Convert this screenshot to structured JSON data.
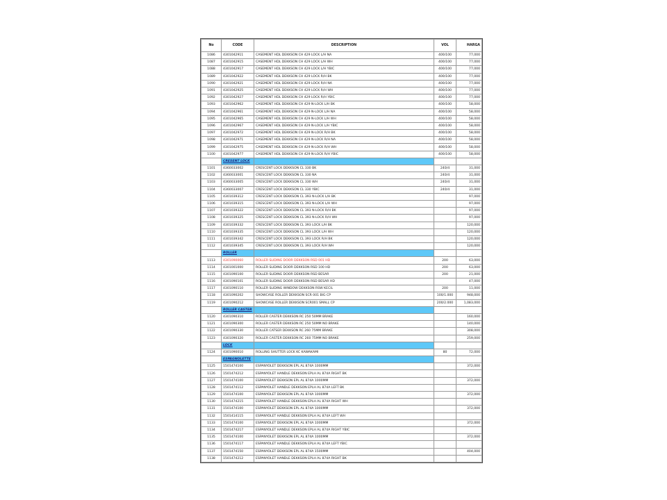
{
  "headers": {
    "no": "No",
    "code": "CODE",
    "description": "DESCRIPTION",
    "vol": "VOL",
    "harga": "HARGA"
  },
  "colors": {
    "section_fill": "#5ec8f8",
    "highlight_text": "#e53935"
  },
  "rows": [
    {
      "no": "1086",
      "code": "4301042911",
      "desc": "CASEMENT HDL DEKKSON CH 429 LOCK L/H NA",
      "vol": "400/100",
      "harga": "77,000"
    },
    {
      "no": "1087",
      "code": "4301042915",
      "desc": "CASEMENT HDL DEKKSON CH 429 LOCK L/H WH",
      "vol": "400/100",
      "harga": "77,000"
    },
    {
      "no": "1088",
      "code": "4301042917",
      "desc": "CASEMENT HDL DEKKSON CH 429 LOCK L/H YBIC",
      "vol": "400/100",
      "harga": "77,000"
    },
    {
      "no": "1089",
      "code": "4301042922",
      "desc": "CASEMENT HDL DEKKSON CH 429 LOCK R/H BK",
      "vol": "400/100",
      "harga": "77,000"
    },
    {
      "no": "1090",
      "code": "4301042921",
      "desc": "CASEMENT HDL DEKKSON CH 429 LOCK R/H NA",
      "vol": "400/100",
      "harga": "77,000"
    },
    {
      "no": "1091",
      "code": "4301042925",
      "desc": "CASEMENT HDL DEKKSON CH 429 LOCK R/H WH",
      "vol": "400/100",
      "harga": "77,000"
    },
    {
      "no": "1092",
      "code": "4301042927",
      "desc": "CASEMENT HDL DEKKSON CH 429 LOCK R/H YBIC",
      "vol": "400/100",
      "harga": "77,000"
    },
    {
      "no": "1093",
      "code": "4301042962",
      "desc": "CASEMENT HDL DEKKSON CH 429 N-LOCK L/H BK",
      "vol": "400/100",
      "harga": "58,000"
    },
    {
      "no": "1094",
      "code": "4301042961",
      "desc": "CASEMENT HDL DEKKSON CH 429 N-LOCK L/H NA",
      "vol": "400/100",
      "harga": "58,000"
    },
    {
      "no": "1095",
      "code": "4301042965",
      "desc": "CASEMENT HDL DEKKSON CH 429 N-LOCK L/H WH",
      "vol": "400/100",
      "harga": "58,000"
    },
    {
      "no": "1096",
      "code": "4301042967",
      "desc": "CASEMENT HDL DEKKSON CH 429 N-LOCK L/H YBIC",
      "vol": "400/100",
      "harga": "58,000"
    },
    {
      "no": "1097",
      "code": "4301042972",
      "desc": "CASEMENT HDL DEKKSON CH 429 N-LOCK R/H BK",
      "vol": "400/100",
      "harga": "58,000"
    },
    {
      "no": "1098",
      "code": "4301042971",
      "desc": "CASEMENT HDL DEKKSON CH 429 N-LOCK R/H NA",
      "vol": "400/100",
      "harga": "58,000"
    },
    {
      "no": "1099",
      "code": "4301042975",
      "desc": "CASEMENT HDL DEKKSON CH 429 N-LOCK R/H WH",
      "vol": "400/100",
      "harga": "58,000"
    },
    {
      "no": "1100",
      "code": "4301042977",
      "desc": "CASEMENT HDL DEKKSON CH 429 N-LOCK R/H YBIC",
      "vol": "400/100",
      "harga": "58,000"
    },
    {
      "section": "CRESENT LOCK"
    },
    {
      "no": "1101",
      "code": "4360033002",
      "desc": "CRESCENT LOCK DEKKSON CL 330 BK",
      "vol": "240/4",
      "harga": "31,000"
    },
    {
      "no": "1102",
      "code": "4360033001",
      "desc": "CRESCENT LOCK DEKKSON CL 330 NA",
      "vol": "240/4",
      "harga": "31,000"
    },
    {
      "no": "1103",
      "code": "4360033005",
      "desc": "CRESCENT LOCK DEKKSON CL 330 WH",
      "vol": "240/4",
      "harga": "31,000"
    },
    {
      "no": "1104",
      "code": "4360033007",
      "desc": "CRESCENT LOCK DEKKSON CL 330 YBIC",
      "vol": "240/4",
      "harga": "31,000"
    },
    {
      "no": "1105",
      "code": "4301039312",
      "desc": "CRESCENT LOCK DEKKSON CL 393 N-LOCK L/H BK",
      "vol": "",
      "harga": "97,000"
    },
    {
      "no": "1106",
      "code": "4301039315",
      "desc": "CRESCENT LOCK DEKKSON CL 393 N-LOCK L/H WH",
      "vol": "",
      "harga": "97,000"
    },
    {
      "no": "1107",
      "code": "4301039322",
      "desc": "CRESCENT LOCK DEKKSON CL 393 N-LOCK R/H BK",
      "vol": "",
      "harga": "97,000"
    },
    {
      "no": "1108",
      "code": "4301039325",
      "desc": "CRESCENT LOCK DEKKSON CL 393 N-LOCK R/H WH",
      "vol": "",
      "harga": "97,000"
    },
    {
      "no": "1109",
      "code": "4301039332",
      "desc": "CRESCENT LOCK DEKKSON CL 393 LOCK L/H BK",
      "vol": "",
      "harga": "120,000"
    },
    {
      "no": "1110",
      "code": "4301039335",
      "desc": "CRESCENT LOCK DEKKSON CL 393 LOCK L/H WH",
      "vol": "",
      "harga": "120,000"
    },
    {
      "no": "1111",
      "code": "4301039342",
      "desc": "CRESCENT LOCK DEKKSON CL 393 LOCK R/H BK",
      "vol": "",
      "harga": "120,000"
    },
    {
      "no": "1112",
      "code": "4301039345",
      "desc": "CRESCENT LOCK DEKKSON CL 393 LOCK R/H WH",
      "vol": "",
      "harga": "120,000"
    },
    {
      "section": "ROLLER"
    },
    {
      "no": "1113",
      "code": "4301090060",
      "desc": "ROLLER SLIDING DOOR DEKKSON RSD 001 HD",
      "vol": "200",
      "harga": "63,000",
      "highlight": true
    },
    {
      "no": "1114",
      "code": "4301001000",
      "desc": "ROLLER SLIDING DOOR DEKKSON RSD 100 HD",
      "vol": "200",
      "harga": "63,000"
    },
    {
      "no": "1115",
      "code": "4301090100",
      "desc": "ROLLER SLIDING DOOR DEKKSON RSD BESAR",
      "vol": "200",
      "harga": "21,000"
    },
    {
      "no": "1116",
      "code": "4301090101",
      "desc": "ROLLER SLIDING DOOR DEKKSON RSD BESAR HD",
      "vol": "",
      "harga": "47,000"
    },
    {
      "no": "1117",
      "code": "4301090110",
      "desc": "ROLLER SLIDING WINDOW DEKKSON RSW KECIL",
      "vol": "200",
      "harga": "11,000"
    },
    {
      "no": "1118",
      "code": "4301090202",
      "desc": "SHOWCASE ROLLER DEKKSON SCR 001 BIG CP",
      "vol": "100/1.000",
      "harga": "948,000"
    },
    {
      "no": "1119",
      "code": "4301090212",
      "desc": "SHOWCASE ROLLER DEKKSON SCR001 SMALL CP",
      "vol": "200/2.000",
      "harga": "1,083,000"
    },
    {
      "section": "ROLLER CASTER"
    },
    {
      "no": "1120",
      "code": "4301090310",
      "desc": "ROLLER CASTER DEKKSON RC 250 50MM BRAKE",
      "vol": "",
      "harga": "160,000"
    },
    {
      "no": "1121",
      "code": "4301090300",
      "desc": "ROLLER CASTER DEKKSON RC 250 50MM NO BRAKE",
      "vol": "",
      "harga": "140,000"
    },
    {
      "no": "1122",
      "code": "4301090330",
      "desc": "ROLLER CATSER DEKKSON RC 260 75MM BRAKE",
      "vol": "",
      "harga": "308,000"
    },
    {
      "no": "1123",
      "code": "4301090320",
      "desc": "ROLLER CASTER DEKKSON RC 260 75MM NO BRAKE",
      "vol": "",
      "harga": "259,000"
    },
    {
      "section": "LOCK"
    },
    {
      "no": "1124",
      "code": "4301090010",
      "desc": "ROLLING SHUTTER LOCK KC KAWAKAMI",
      "vol": "80",
      "harga": "72,000"
    },
    {
      "section": "ESPAGNOLETTE"
    },
    {
      "no": "1125",
      "code": "1501474100",
      "desc": "ESPANYOLET DEKKSON EPL AL 874A 1000MM",
      "vol": "",
      "harga": "372,000"
    },
    {
      "no": "1126",
      "code": "1501474212",
      "desc": "ESPANYOLET HANDLE DEKKSON EPLH AL 874A RIGHT BK",
      "vol": "",
      "harga": ""
    },
    {
      "no": "1127",
      "code": "1501474100",
      "desc": "ESPANYOLET DEKKSON EPL AL 874A 1000MM",
      "vol": "",
      "harga": "372,000"
    },
    {
      "no": "1128",
      "code": "1501474112",
      "desc": "ESPANYOLET HANDLE DEKKSON EPLH AL 874A LEFT BK",
      "vol": "",
      "harga": ""
    },
    {
      "no": "1129",
      "code": "1501474100",
      "desc": "ESPANYOLET DEKKSON EPL AL 874A 1000MM",
      "vol": "",
      "harga": "372,000"
    },
    {
      "no": "1130",
      "code": "1501474215",
      "desc": "ESPANYOLET HANDLE DEKKSON EPLH AL 874A RIGHT WH",
      "vol": "",
      "harga": ""
    },
    {
      "no": "1131",
      "code": "1501474100",
      "desc": "ESPANYOLET DEKKSON EPL AL 874A 1000MM",
      "vol": "",
      "harga": "372,000"
    },
    {
      "no": "1132",
      "code": "1501414115",
      "desc": "ESPANYOLET HANDLE DEKKSON EPLH AL 874A LEFT WH",
      "vol": "",
      "harga": ""
    },
    {
      "no": "1133",
      "code": "1501474100",
      "desc": "ESPANYOLET DEKKSON EPL AL 874A 1000MM",
      "vol": "",
      "harga": "372,000"
    },
    {
      "no": "1134",
      "code": "1501474217",
      "desc": "ESPANYOLET HANDLE DEKKSON EPLH AL 874A RIGHT YBIC",
      "vol": "",
      "harga": ""
    },
    {
      "no": "1135",
      "code": "1501474100",
      "desc": "ESPANYOLET DEKKSON EPL AL 874A 1000MM",
      "vol": "",
      "harga": "372,000"
    },
    {
      "no": "1136",
      "code": "1501474117",
      "desc": "ESPANYOLET HANDLE DEKKSON EPLH AL 874A LEFT YBIC",
      "vol": "",
      "harga": ""
    },
    {
      "no": "1137",
      "code": "1501474150",
      "desc": "ESPANYOLET DEKKSON EPL AL 874A 1500MM",
      "vol": "",
      "harga": "404,000"
    },
    {
      "no": "1138",
      "code": "1501474212",
      "desc": "ESPANYOLET HANDLE DEKKSON EPLH AL 874A RIGHT BK",
      "vol": "",
      "harga": ""
    }
  ]
}
